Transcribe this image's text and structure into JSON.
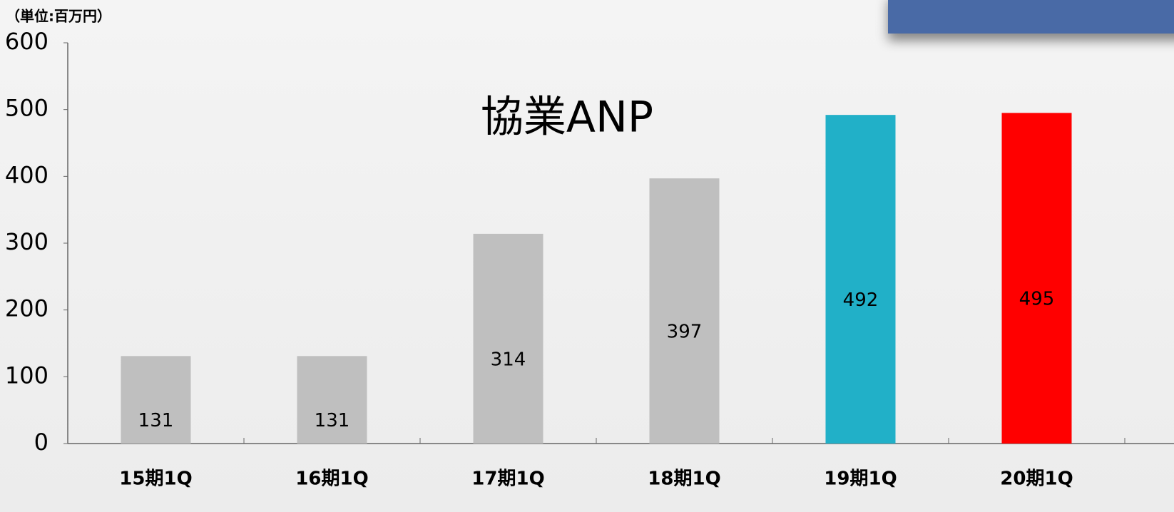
{
  "chart_data": {
    "type": "bar",
    "title": "協業ANP",
    "unit_label": "（単位:百万円）",
    "categories": [
      "15期1Q",
      "16期1Q",
      "17期1Q",
      "18期1Q",
      "19期1Q",
      "20期1Q"
    ],
    "values": [
      131,
      131,
      314,
      397,
      492,
      495
    ],
    "colors": [
      "#bfbfbf",
      "#bfbfbf",
      "#bfbfbf",
      "#bfbfbf",
      "#21b0c8",
      "#ff0000"
    ],
    "ylim": [
      0,
      600
    ],
    "yticks": [
      0,
      100,
      200,
      300,
      400,
      500,
      600
    ],
    "grid": false
  }
}
